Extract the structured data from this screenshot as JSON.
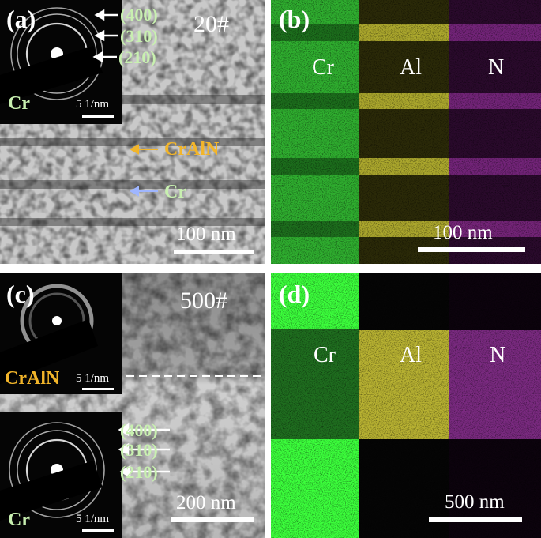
{
  "panel_a": {
    "letter": "(a)",
    "sample": "20#",
    "saed_planes": [
      "(400)",
      "(310)",
      "(210)"
    ],
    "saed_element": "Cr",
    "saed_scale": "5 1/nm",
    "layer_labels": [
      "CrAlN",
      "Cr"
    ],
    "scale_bar": "100 nm"
  },
  "panel_b": {
    "letter": "(b)",
    "elements": [
      "Cr",
      "Al",
      "N"
    ],
    "scale_bar": "100 nm",
    "colors": {
      "Cr": "#2fae2f",
      "Al": "#d8d23a",
      "N": "#b03ab8"
    }
  },
  "panel_c": {
    "letter": "(c)",
    "sample": "500#",
    "saed_top_element": "CrAlN",
    "saed_top_scale": "5 1/nm",
    "saed_planes": [
      "(400)",
      "(310)",
      "(210)"
    ],
    "saed_bottom_element": "Cr",
    "saed_bottom_scale": "5 1/nm",
    "scale_bar": "200 nm"
  },
  "panel_d": {
    "letter": "(d)",
    "elements": [
      "Cr",
      "Al",
      "N"
    ],
    "scale_bar": "500 nm",
    "colors": {
      "Cr": "#3cff3c",
      "Al": "#d8d23a",
      "N": "#b03ab8"
    }
  }
}
